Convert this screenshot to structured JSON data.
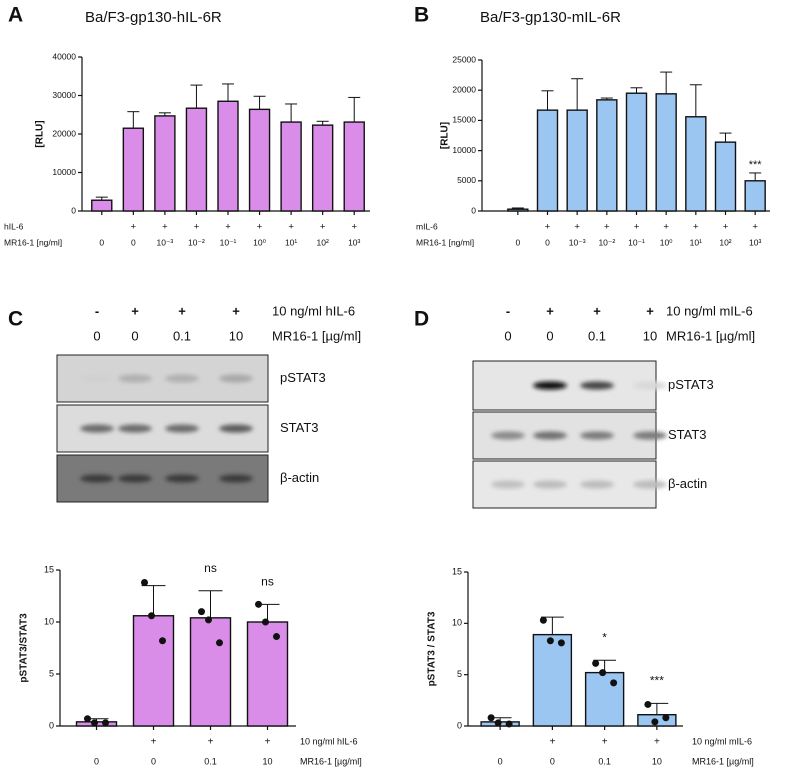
{
  "panels": [
    "A",
    "B",
    "C",
    "D"
  ],
  "chart_data": [
    {
      "type": "bar",
      "title": "Ba/F3-gp130-hIL-6R",
      "y_label": "[RLU]",
      "color": "#d98de8",
      "error_bars": "upper",
      "row_labels": [
        "hIL-6",
        "MR16-1 [ng/ml]"
      ],
      "treatment": [
        null,
        "+",
        "+",
        "+",
        "+",
        "+",
        "+",
        "+",
        "+"
      ],
      "categories": [
        "0",
        "0",
        "10⁻³",
        "10⁻²",
        "10⁻¹",
        "10⁰",
        "10¹",
        "10²",
        "10³"
      ],
      "values": [
        2800,
        21500,
        24700,
        26700,
        28500,
        26400,
        23100,
        22300,
        23100
      ],
      "errors": [
        800,
        4300,
        800,
        6000,
        4500,
        3400,
        4700,
        1000,
        6400
      ],
      "ylim": [
        0,
        40000
      ],
      "yticks": [
        0,
        10000,
        20000,
        30000,
        40000
      ]
    },
    {
      "type": "bar",
      "title": "Ba/F3-gp130-mIL-6R",
      "y_label": "[RLU]",
      "color": "#9cc6f2",
      "error_bars": "upper",
      "row_labels": [
        "mIL-6",
        "MR16-1 [ng/ml]"
      ],
      "treatment": [
        null,
        "+",
        "+",
        "+",
        "+",
        "+",
        "+",
        "+",
        "+"
      ],
      "categories": [
        "0",
        "0",
        "10⁻³",
        "10⁻²",
        "10⁻¹",
        "10⁰",
        "10¹",
        "10²",
        "10³"
      ],
      "values": [
        300,
        16700,
        16700,
        18400,
        19500,
        19400,
        15600,
        11400,
        5000
      ],
      "errors": [
        200,
        3200,
        5200,
        300,
        900,
        3600,
        5300,
        1500,
        1300
      ],
      "annotations": [
        null,
        null,
        null,
        null,
        null,
        null,
        null,
        null,
        "***"
      ],
      "ylim": [
        0,
        25000
      ],
      "yticks": [
        0,
        5000,
        10000,
        15000,
        20000,
        25000
      ]
    },
    {
      "type": "bar",
      "y_label": "pSTAT3/STAT3",
      "color": "#d98de8",
      "error_bars": "both",
      "row_labels": [
        "10 ng/ml hIL-6",
        "MR16-1 [µg/ml]"
      ],
      "treatment": [
        null,
        "+",
        "+",
        "+"
      ],
      "categories": [
        "0",
        "0",
        "0.1",
        "10"
      ],
      "values": [
        0.4,
        10.6,
        10.4,
        10.0
      ],
      "errors": [
        0.3,
        2.9,
        2.6,
        1.7
      ],
      "points": [
        [
          0.7,
          0.3,
          0.3
        ],
        [
          13.8,
          10.6,
          8.2
        ],
        [
          11.0,
          10.2,
          8.0
        ],
        [
          11.7,
          10.0,
          8.6
        ]
      ],
      "annotations": [
        null,
        null,
        "ns",
        "ns"
      ],
      "ylim": [
        0,
        15
      ],
      "yticks": [
        0,
        5,
        10,
        15
      ]
    },
    {
      "type": "bar",
      "y_label": "pSTAT3 / STAT3",
      "color": "#9cc6f2",
      "error_bars": "both",
      "row_labels": [
        "10 ng/ml mIL-6",
        "MR16-1 [µg/ml]"
      ],
      "treatment": [
        null,
        "+",
        "+",
        "+"
      ],
      "categories": [
        "0",
        "0",
        "0.1",
        "10"
      ],
      "values": [
        0.4,
        8.9,
        5.2,
        1.1
      ],
      "errors": [
        0.4,
        1.7,
        1.2,
        1.1
      ],
      "points": [
        [
          0.8,
          0.3,
          0.2
        ],
        [
          10.3,
          8.3,
          8.1
        ],
        [
          6.1,
          5.2,
          4.2
        ],
        [
          2.1,
          0.4,
          0.8
        ]
      ],
      "annotations": [
        null,
        null,
        "*",
        "***"
      ],
      "ylim": [
        0,
        15
      ],
      "yticks": [
        0,
        5,
        10,
        15
      ]
    }
  ],
  "blots": [
    {
      "treatment": [
        "-",
        "+",
        "+",
        "+"
      ],
      "dose": [
        "0",
        "0",
        "0.1",
        "10"
      ],
      "row_labels": [
        "10 ng/ml hIL-6",
        "MR16-1 [µg/ml]"
      ],
      "bands": [
        "pSTAT3",
        "STAT3",
        "β-actin"
      ]
    },
    {
      "treatment": [
        "-",
        "+",
        "+",
        "+"
      ],
      "dose": [
        "0",
        "0",
        "0.1",
        "10"
      ],
      "row_labels": [
        "10 ng/ml mIL-6",
        "MR16-1 [µg/ml]"
      ],
      "bands": [
        "pSTAT3",
        "STAT3",
        "β-actin"
      ]
    }
  ]
}
